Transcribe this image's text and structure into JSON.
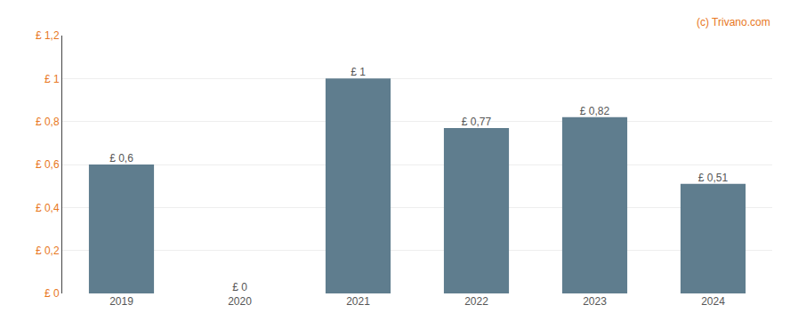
{
  "chart_data": {
    "type": "bar",
    "categories": [
      "2019",
      "2020",
      "2021",
      "2022",
      "2023",
      "2024"
    ],
    "values": [
      0.6,
      0.0,
      1.0,
      0.77,
      0.82,
      0.51
    ],
    "value_labels": [
      "£ 0,6",
      "£ 0",
      "£ 1",
      "£ 0,77",
      "£ 0,82",
      "£ 0,51"
    ],
    "color": "#5f7d8e",
    "ylim": [
      0,
      1.2
    ],
    "yticks": [
      {
        "value": 0,
        "label": "£ 0"
      },
      {
        "value": 0.2,
        "label": "£ 0,2"
      },
      {
        "value": 0.4,
        "label": "£ 0,4"
      },
      {
        "value": 0.6,
        "label": "£ 0,6"
      },
      {
        "value": 0.8,
        "label": "£ 0,8"
      },
      {
        "value": 1.0,
        "label": "£ 1"
      },
      {
        "value": 1.2,
        "label": "£ 1,2"
      }
    ],
    "grid": true,
    "data_labels": true,
    "annotations": [
      "(c) Trivano.com"
    ]
  }
}
